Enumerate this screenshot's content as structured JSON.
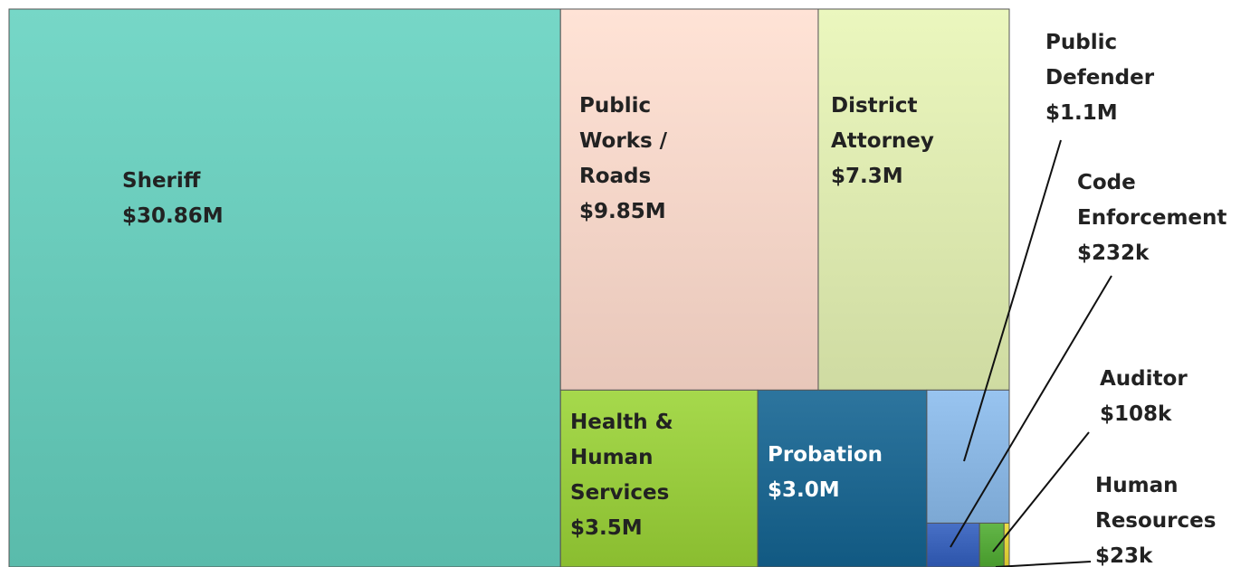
{
  "chart_data": {
    "type": "treemap",
    "categories": [
      "Sheriff",
      "Public Works / Roads",
      "District Attorney",
      "Health & Human Services",
      "Probation",
      "Public Defender",
      "Code Enforcement",
      "Auditor",
      "Human Resources"
    ],
    "values": [
      30860000,
      9850000,
      7300000,
      3500000,
      3000000,
      1100000,
      232000,
      108000,
      23000
    ],
    "value_labels": [
      "$30.86M",
      "$9.85M",
      "$7.3M",
      "$3.5M",
      "$3.0M",
      "$1.1M",
      "$232k",
      "$108k",
      "$23k"
    ],
    "colors": [
      "#68c9b9",
      "#f6d5c8",
      "#dde9b0",
      "#98cb3e",
      "#1f6790",
      "#8ab6e2",
      "#3a62b8",
      "#55a83a",
      "#e0d13a"
    ]
  }
}
